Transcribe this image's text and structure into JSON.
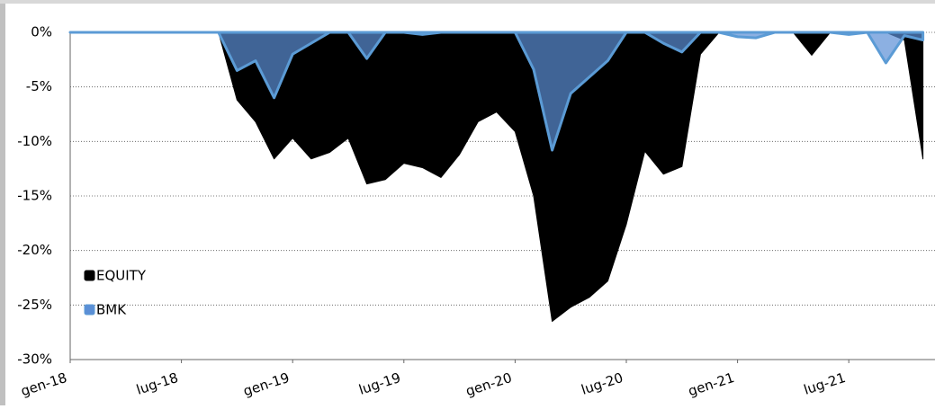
{
  "chart_data": {
    "type": "area",
    "categories": [
      "gen-18",
      null,
      null,
      null,
      null,
      null,
      "lug-18",
      null,
      null,
      null,
      null,
      null,
      "gen-19",
      null,
      null,
      null,
      null,
      null,
      "lug-19",
      null,
      null,
      null,
      null,
      null,
      "gen-20",
      null,
      null,
      null,
      null,
      null,
      "lug-20",
      null,
      null,
      null,
      null,
      null,
      "gen-21",
      null,
      null,
      null,
      null,
      null,
      "lug-21",
      null,
      null,
      null,
      null
    ],
    "series": [
      {
        "name": "EQUITY",
        "color": "#000000",
        "values": [
          0,
          0,
          0,
          0,
          0,
          0,
          0,
          0,
          0,
          -6.2,
          -8.2,
          -11.6,
          -9.7,
          -11.6,
          -11.0,
          -9.7,
          -13.9,
          -13.5,
          -12.0,
          -12.4,
          -13.3,
          -11.2,
          -8.2,
          -7.3,
          -9.1,
          -15.0,
          -26.5,
          -25.2,
          -24.3,
          -22.8,
          -17.6,
          -10.9,
          -13.0,
          -12.3,
          -2.0,
          0,
          0,
          0,
          0,
          0,
          -2.1,
          0,
          0,
          0,
          0,
          -0.7,
          -11.6
        ]
      },
      {
        "name": "BMK",
        "color": "#5b8fd6",
        "values": [
          0,
          0,
          0,
          0,
          0,
          0,
          0,
          0,
          0,
          -3.5,
          -2.6,
          -6.0,
          -2.0,
          -1.0,
          0,
          0,
          -2.4,
          0,
          0,
          -0.2,
          0,
          0,
          0,
          0,
          0,
          -3.4,
          -10.8,
          -5.6,
          -4.1,
          -2.6,
          0,
          0,
          -1.0,
          -1.8,
          0,
          0,
          -0.4,
          -0.5,
          0,
          0,
          0,
          0,
          -0.2,
          0,
          -2.8,
          -0.3,
          -0.7
        ]
      }
    ],
    "ylim": [
      -30,
      0
    ],
    "yticks": [
      {
        "value": 0,
        "label": "0%"
      },
      {
        "value": -5,
        "label": "-5%"
      },
      {
        "value": -10,
        "label": "-10%"
      },
      {
        "value": -15,
        "label": "-15%"
      },
      {
        "value": -20,
        "label": "-20%"
      },
      {
        "value": -25,
        "label": "-25%"
      },
      {
        "value": -30,
        "label": "-30%"
      }
    ],
    "grid": true
  }
}
